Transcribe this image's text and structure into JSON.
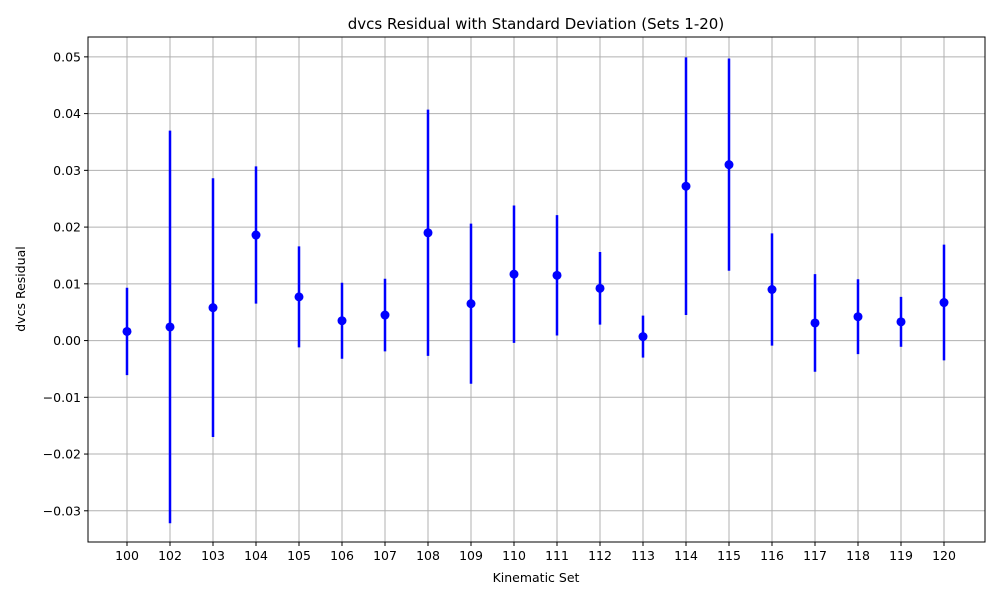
{
  "chart_data": {
    "type": "scatter",
    "title": "dvcs Residual with Standard Deviation (Sets 1-20)",
    "xlabel": "Kinematic Set",
    "ylabel": "dvcs Residual",
    "categories": [
      "100",
      "102",
      "103",
      "104",
      "105",
      "106",
      "107",
      "108",
      "109",
      "110",
      "111",
      "112",
      "113",
      "114",
      "115",
      "116",
      "117",
      "118",
      "119",
      "120"
    ],
    "series": [
      {
        "values": [
          0.0016,
          0.0024,
          0.0058,
          0.0186,
          0.0077,
          0.0035,
          0.0045,
          0.019,
          0.0065,
          0.0117,
          0.0115,
          0.0092,
          0.0007,
          0.0272,
          0.031,
          0.009,
          0.0031,
          0.0042,
          0.0033,
          0.0067
        ],
        "errors": [
          0.0077,
          0.0346,
          0.0228,
          0.0121,
          0.0089,
          0.0067,
          0.0064,
          0.0217,
          0.0141,
          0.0121,
          0.0106,
          0.0064,
          0.0037,
          0.0227,
          0.0187,
          0.0099,
          0.0086,
          0.0066,
          0.0044,
          0.0102
        ],
        "color": "#0000ff"
      }
    ],
    "ylim": [
      -0.0355,
      0.0535
    ],
    "yticks": [
      -0.03,
      -0.02,
      -0.01,
      0.0,
      0.01,
      0.02,
      0.03,
      0.04,
      0.05
    ],
    "ytick_labels": [
      "−0.03",
      "−0.02",
      "−0.01",
      "0.00",
      "0.01",
      "0.02",
      "0.03",
      "0.04",
      "0.05"
    ],
    "grid": true,
    "grid_color": "#b0b0b0"
  }
}
